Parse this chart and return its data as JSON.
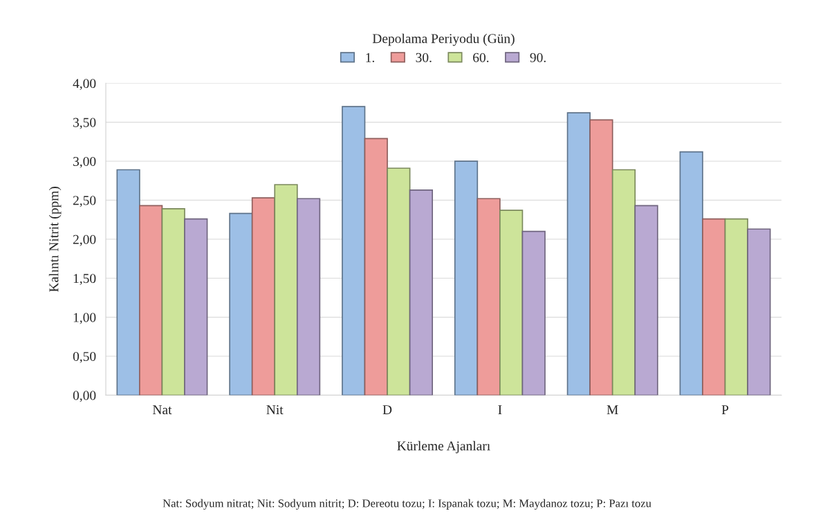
{
  "chart_data": {
    "type": "bar",
    "categories": [
      "Nat",
      "Nit",
      "D",
      "I",
      "M",
      "P"
    ],
    "series": [
      {
        "name": "1.",
        "color": "#9dbfe6",
        "values": [
          2.89,
          2.33,
          3.7,
          3.0,
          3.62,
          3.12
        ]
      },
      {
        "name": "30.",
        "color": "#ee9c9a",
        "values": [
          2.43,
          2.53,
          3.29,
          2.52,
          3.53,
          2.26
        ]
      },
      {
        "name": "60.",
        "color": "#cde49a",
        "values": [
          2.39,
          2.7,
          2.91,
          2.37,
          2.89,
          2.26
        ]
      },
      {
        "name": "90.",
        "color": "#b9a9d2",
        "values": [
          2.26,
          2.52,
          2.63,
          2.1,
          2.43,
          2.13
        ]
      }
    ],
    "ylim": [
      0,
      4
    ],
    "yticks": [
      {
        "value": 0,
        "label": "0,00"
      },
      {
        "value": 0.5,
        "label": "0,50"
      },
      {
        "value": 1,
        "label": "1,00"
      },
      {
        "value": 1.5,
        "label": "1,50"
      },
      {
        "value": 2,
        "label": "2,00"
      },
      {
        "value": 2.5,
        "label": "2,50"
      },
      {
        "value": 3,
        "label": "3,00"
      },
      {
        "value": 3.5,
        "label": "3,50"
      },
      {
        "value": 4,
        "label": "4,00"
      }
    ],
    "xlabel": "Kürleme Ajanları",
    "ylabel": "Kalıntı Nitrit (ppm)",
    "legend_title": "Depolama Periyodu (Gün)",
    "legend": "top",
    "grid": "y",
    "annotations": [
      "Nat: Sodyum nitrat; Nit: Sodyum nitrit; D: Dereotu tozu; I: Ispanak tozu; M: Maydanoz tozu; P: Pazı tozu"
    ]
  }
}
